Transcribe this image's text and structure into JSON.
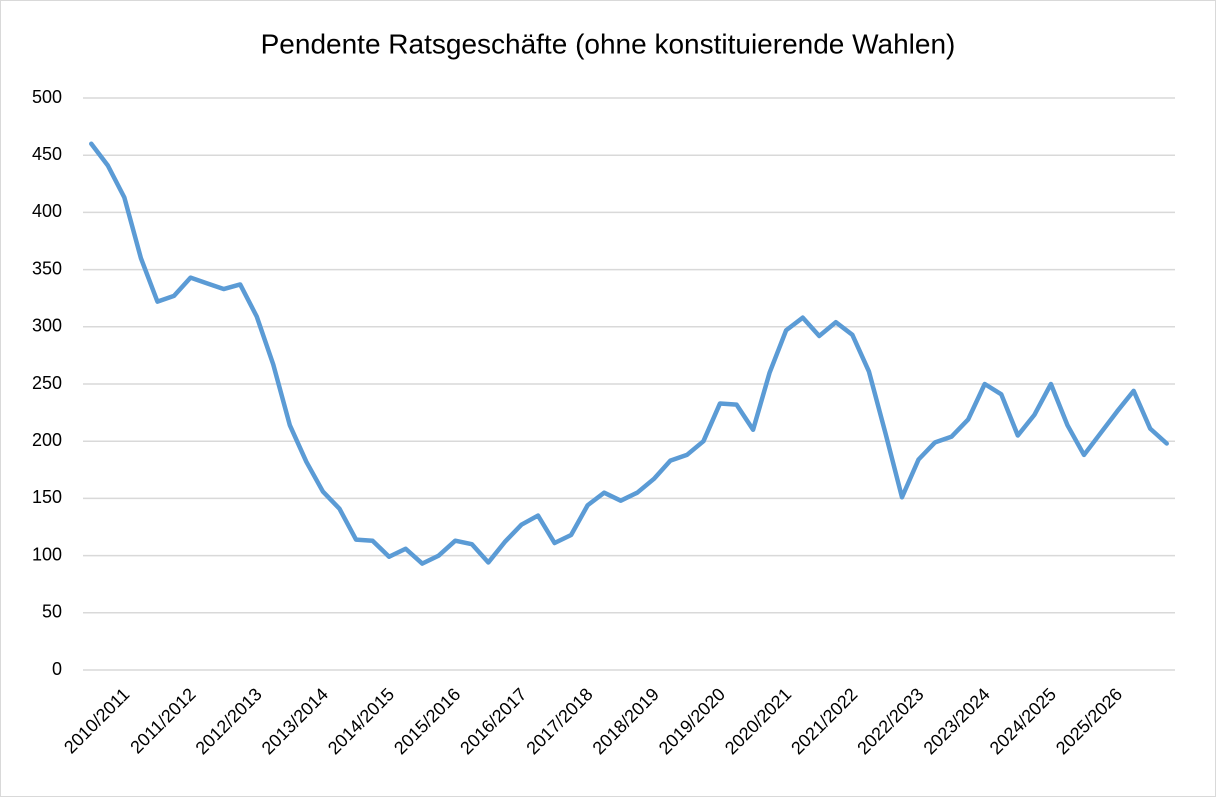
{
  "chart_data": {
    "type": "line",
    "title": "Pendente Ratsgeschäfte (ohne konstituierende Wahlen)",
    "categories": [
      "2010/2011",
      null,
      null,
      null,
      "2011/2012",
      null,
      null,
      null,
      "2012/2013",
      null,
      null,
      null,
      "2013/2014",
      null,
      null,
      null,
      "2014/2015",
      null,
      null,
      null,
      "2015/2016",
      null,
      null,
      null,
      "2016/2017",
      null,
      null,
      null,
      "2017/2018",
      null,
      null,
      null,
      "2018/2019",
      null,
      null,
      null,
      "2019/2020",
      null,
      null,
      null,
      "2020/2021",
      null,
      null,
      null,
      "2021/2022",
      null,
      null,
      null,
      "2022/2023",
      null,
      null,
      null,
      "2023/2024",
      null,
      null,
      null,
      "2024/2025",
      null,
      null,
      null,
      "2025/2026",
      null,
      null,
      null,
      null,
      null
    ],
    "series": [
      {
        "name": "Pendente Ratsgeschäfte",
        "color": "#5b9bd5",
        "values": [
          460,
          441,
          413,
          360,
          322,
          327,
          343,
          338,
          333,
          337,
          309,
          267,
          214,
          182,
          156,
          141,
          114,
          113,
          99,
          106,
          93,
          100,
          113,
          110,
          94,
          112,
          127,
          135,
          111,
          118,
          144,
          155,
          148,
          155,
          167,
          183,
          188,
          200,
          233,
          232,
          210,
          260,
          297,
          308,
          292,
          304,
          293,
          261,
          207,
          151,
          184,
          199,
          204,
          219,
          250,
          241,
          205,
          223,
          250,
          214,
          188,
          207,
          226,
          244,
          211,
          198
        ]
      }
    ],
    "ylim": [
      0,
      500
    ],
    "yticks": [
      0,
      50,
      100,
      150,
      200,
      250,
      300,
      350,
      400,
      450,
      500
    ],
    "grid": true
  }
}
